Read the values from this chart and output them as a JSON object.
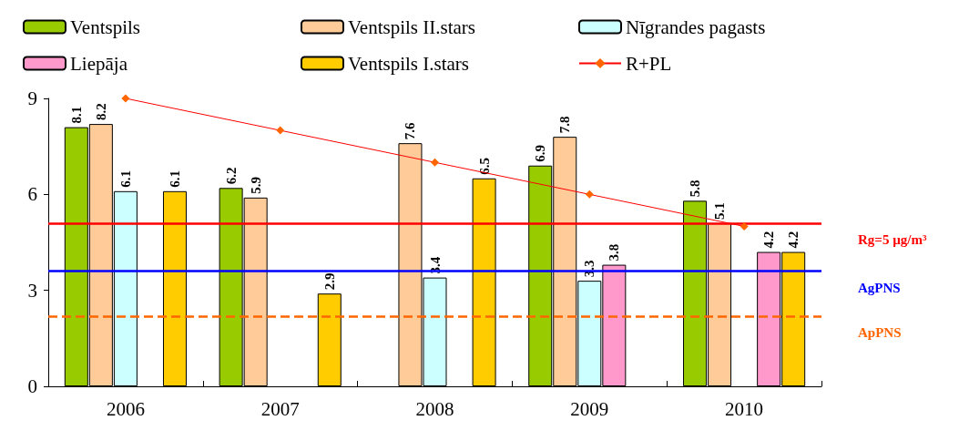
{
  "chart_data": {
    "type": "bar",
    "categories": [
      "2006",
      "2007",
      "2008",
      "2009",
      "2010"
    ],
    "series": [
      {
        "name": "Ventspils",
        "color": "#99cc00",
        "values": [
          8.1,
          6.2,
          null,
          6.9,
          5.8
        ],
        "value_labels": [
          "8.1",
          "6.2",
          null,
          "6.9",
          "5.8"
        ]
      },
      {
        "name": "Ventspils II.stars",
        "color": "#ffcc99",
        "values": [
          8.2,
          5.9,
          7.6,
          7.8,
          5.1
        ],
        "value_labels": [
          "8.2",
          "5.9",
          "7.6",
          "7.8",
          "5.1"
        ]
      },
      {
        "name": "Nīgrandes pagasts",
        "color": "#ccffff",
        "values": [
          6.1,
          null,
          3.4,
          3.3,
          null
        ],
        "value_labels": [
          "6.1",
          null,
          "3.4",
          "3.3",
          null
        ]
      },
      {
        "name": "Liepāja",
        "color": "#ff99cc",
        "values": [
          null,
          null,
          null,
          3.8,
          4.2
        ],
        "value_labels": [
          null,
          null,
          null,
          "3.8",
          "4.2"
        ]
      },
      {
        "name": "Ventspils I.stars",
        "color": "#ffcc00",
        "values": [
          6.1,
          2.9,
          6.5,
          null,
          4.2
        ],
        "value_labels": [
          "6.1",
          "2.9",
          "6.5",
          null,
          "4.2"
        ]
      },
      {
        "name": "R+PL",
        "type": "line",
        "color": "#ff6600",
        "marker": "diamond",
        "values": [
          9,
          8,
          7,
          6,
          5
        ]
      }
    ],
    "ylim": [
      0,
      9
    ],
    "yticks": [
      0,
      3,
      6,
      9
    ],
    "grid": false,
    "legend": "top",
    "ref_lines": [
      {
        "axis": "y",
        "value": 5.1,
        "label": "Rg=5 µg/m³",
        "color": "#ff0000",
        "line_style": "solid"
      },
      {
        "axis": "y",
        "value": 3.6,
        "label": "AgPNS",
        "color": "#0000ff",
        "line_style": "solid"
      },
      {
        "axis": "y",
        "value": 2.2,
        "label": "ApPNS",
        "color": "#ff6600",
        "line_style": "dashed"
      }
    ]
  }
}
